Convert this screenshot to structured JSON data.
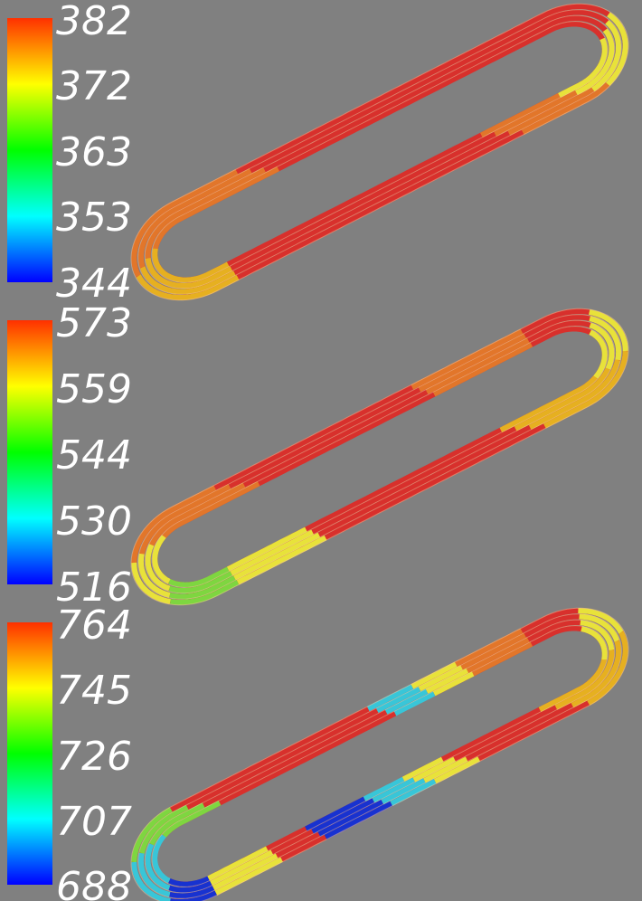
{
  "background_color": "#808080",
  "panels": [
    {
      "id": "panel-1",
      "ticks": [
        "382",
        "372",
        "363",
        "353",
        "344"
      ]
    },
    {
      "id": "panel-2",
      "ticks": [
        "573",
        "559",
        "544",
        "530",
        "516"
      ]
    },
    {
      "id": "panel-3",
      "ticks": [
        "764",
        "745",
        "726",
        "707",
        "688"
      ]
    }
  ],
  "colormap": [
    "#0000ff",
    "#00ffff",
    "#00ff00",
    "#ffff00",
    "#ff8000",
    "#ff2a00"
  ],
  "coil_colors": {
    "hot": "#d8302c",
    "warm": "#e2762a",
    "mid": "#e6b020",
    "yellow": "#e8e23a",
    "green": "#7ed640",
    "cyan": "#38c6d8",
    "blue": "#1832d0"
  }
}
